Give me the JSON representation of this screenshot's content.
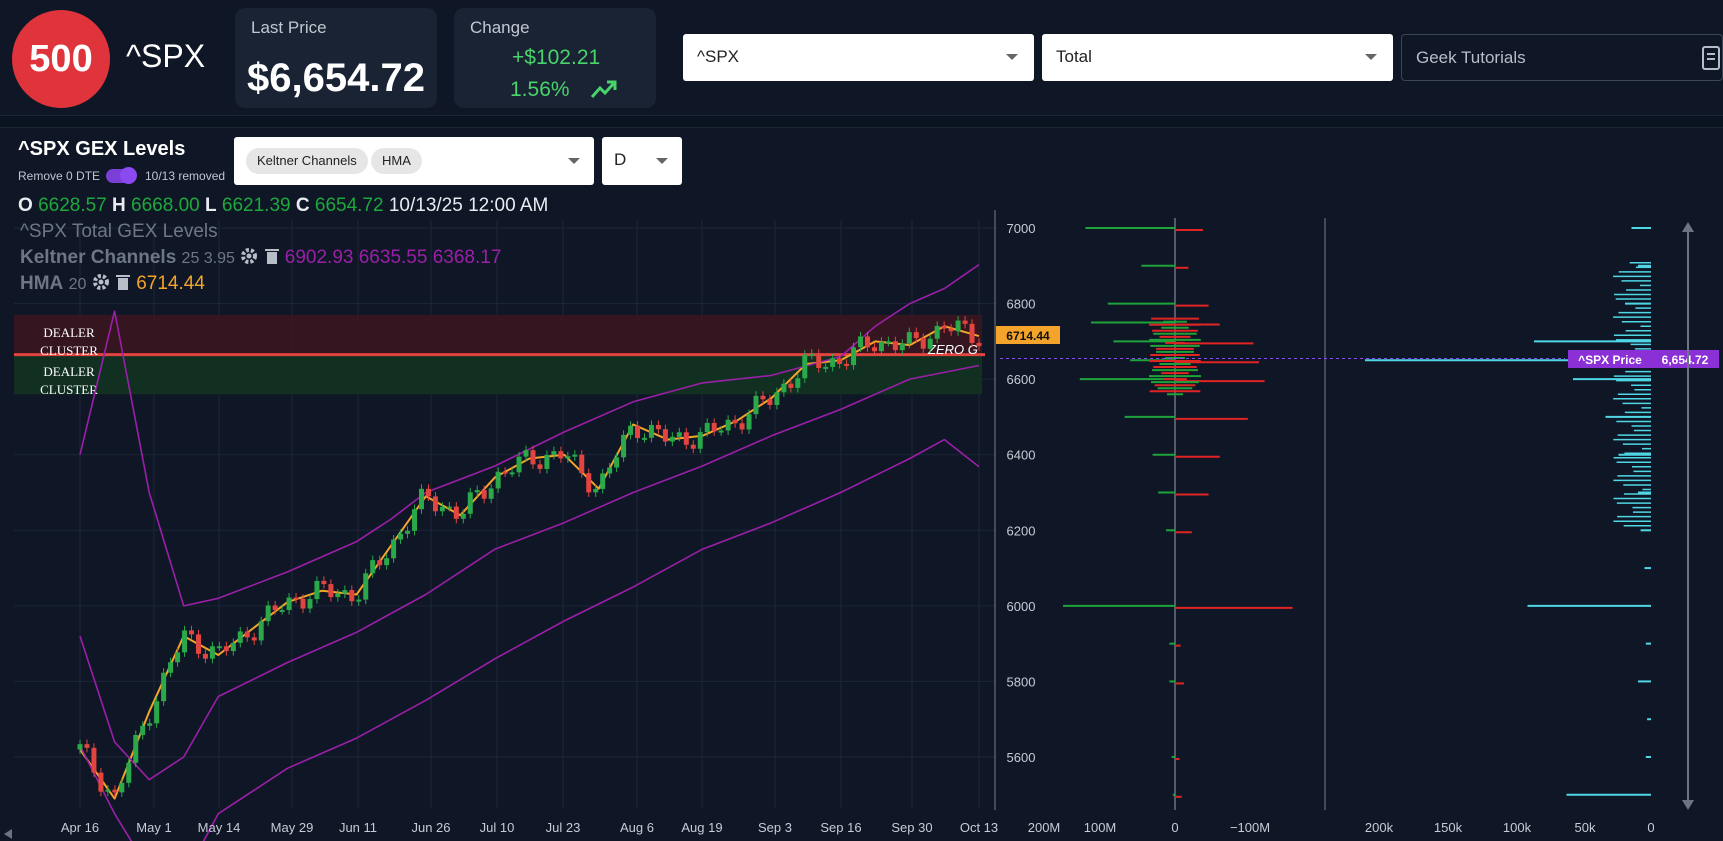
{
  "header": {
    "logo_text": "500",
    "ticker": "^SPX",
    "last_price_label": "Last Price",
    "last_price": "$6,654.72",
    "change_label": "Change",
    "change_abs": "+$102.21",
    "change_pct": "1.56%",
    "symbol_select": "^SPX",
    "type_select": "Total",
    "search_value": "Geek Tutorials",
    "trend_icon": "trending-up-icon",
    "accent_up": "#49d36b"
  },
  "panel": {
    "title": "^SPX GEX Levels",
    "toggle_label": "Remove 0 DTE",
    "toggle_on": true,
    "removed_label": "10/13 removed",
    "indicators": [
      "Keltner Channels",
      "HMA"
    ],
    "timeframe": "D"
  },
  "ohlc": {
    "o_label": "O",
    "o": "6628.57",
    "h_label": "H",
    "h": "6668.00",
    "l_label": "L",
    "l": "6621.39",
    "c_label": "C",
    "c": "6654.72",
    "datetime": "10/13/25 12:00 AM"
  },
  "legend": {
    "series_title": "^SPX Total GEX Levels",
    "keltner_label": "Keltner Channels",
    "keltner_params": "25 3.95",
    "keltner_values": "6902.93 6635.55 6368.17",
    "hma_label": "HMA",
    "hma_params": "20",
    "hma_value": "6714.44"
  },
  "annotations": {
    "dealer_cluster_upper": "DEALER CLUSTER",
    "dealer_cluster_lower": "DEALER CLUSTER",
    "zero_g": "ZERO G",
    "hma_tag": "6714.44",
    "price_tag_label": "^SPX Price",
    "price_tag_value": "6,654.72"
  },
  "chart_data": {
    "type": "line",
    "title": "^SPX Total GEX Levels",
    "x_ticks": [
      "Apr 16",
      "May 1",
      "May 14",
      "May 29",
      "Jun 11",
      "Jun 26",
      "Jul 10",
      "Jul 23",
      "Aug 6",
      "Aug 19",
      "Sep 3",
      "Sep 16",
      "Sep 30",
      "Oct 13"
    ],
    "y_ticks": [
      5600,
      5800,
      6000,
      6200,
      6400,
      6600,
      6800,
      7000
    ],
    "ylim": [
      5500,
      7030
    ],
    "series": [
      {
        "name": "HMA",
        "color": "#f4a42a",
        "x": [
          0.0,
          0.5,
          1,
          1.5,
          2,
          2.5,
          3,
          3.5,
          4,
          4.5,
          5,
          5.5,
          6,
          6.5,
          7,
          7.5,
          8,
          8.5,
          9,
          9.5,
          10,
          10.5,
          11,
          11.5,
          12,
          12.5,
          13
        ],
        "values": [
          5620,
          5490,
          5720,
          5920,
          5870,
          5940,
          6010,
          6040,
          6030,
          6160,
          6290,
          6240,
          6340,
          6390,
          6400,
          6310,
          6480,
          6440,
          6450,
          6490,
          6550,
          6640,
          6650,
          6700,
          6690,
          6740,
          6714
        ]
      },
      {
        "name": "Keltner Upper",
        "color": "#9b1fa8",
        "x": [
          0.0,
          0.5,
          1,
          1.5,
          2,
          3,
          4,
          4.5,
          5,
          6,
          7,
          8,
          9,
          10,
          11,
          11.5,
          12,
          12.5,
          13
        ],
        "values": [
          6400,
          6780,
          6300,
          6000,
          6020,
          6090,
          6170,
          6230,
          6300,
          6370,
          6460,
          6540,
          6590,
          6610,
          6660,
          6740,
          6800,
          6840,
          6903
        ]
      },
      {
        "name": "Keltner Middle",
        "color": "#9b1fa8",
        "x": [
          0.0,
          0.5,
          1,
          1.5,
          2,
          3,
          4,
          5,
          6,
          7,
          8,
          9,
          10,
          11,
          12,
          13
        ],
        "values": [
          5920,
          5640,
          5540,
          5600,
          5760,
          5850,
          5930,
          6030,
          6150,
          6220,
          6300,
          6370,
          6450,
          6520,
          6600,
          6636
        ]
      },
      {
        "name": "Keltner Lower",
        "color": "#9b1fa8",
        "x": [
          0.0,
          0.5,
          1,
          1.5,
          2,
          3,
          4,
          5,
          6,
          7,
          8,
          9,
          10,
          11,
          12,
          12.5,
          13
        ],
        "values": [
          5630,
          5450,
          5300,
          5280,
          5450,
          5570,
          5650,
          5750,
          5860,
          5960,
          6050,
          6150,
          6220,
          6300,
          6390,
          6440,
          6368
        ]
      }
    ],
    "zones": [
      {
        "label": "DEALER CLUSTER",
        "from": 6665,
        "to": 6770,
        "color": "#3a1620"
      },
      {
        "label": "DEALER CLUSTER",
        "from": 6560,
        "to": 6665,
        "color": "#123321"
      }
    ],
    "zero_gamma": 6665,
    "gex_by_strike": {
      "x_ticks": [
        "200M",
        "100M",
        "0",
        "−100M"
      ],
      "strikes": [
        7000,
        6900,
        6800,
        6750,
        6700,
        6650,
        6600,
        6500,
        6400,
        6300,
        6200,
        6000,
        5900,
        5800,
        5600,
        5500
      ],
      "positive": [
        80,
        30,
        60,
        75,
        55,
        40,
        85,
        45,
        20,
        15,
        8,
        100,
        5,
        5,
        3,
        2
      ],
      "negative": [
        25,
        12,
        30,
        40,
        70,
        75,
        80,
        65,
        40,
        30,
        15,
        105,
        5,
        8,
        4,
        6
      ]
    },
    "volume_by_strike": {
      "x_ticks": [
        "200k",
        "150k",
        "100k",
        "50k",
        "0"
      ],
      "strikes": [
        7000,
        6900,
        6800,
        6700,
        6650,
        6600,
        6500,
        6400,
        6300,
        6200,
        6100,
        6000,
        5900,
        5800,
        5700,
        5600,
        5500
      ],
      "values": [
        15,
        10,
        20,
        90,
        220,
        60,
        35,
        25,
        10,
        8,
        5,
        95,
        4,
        10,
        3,
        4,
        65
      ]
    },
    "grid": true
  }
}
